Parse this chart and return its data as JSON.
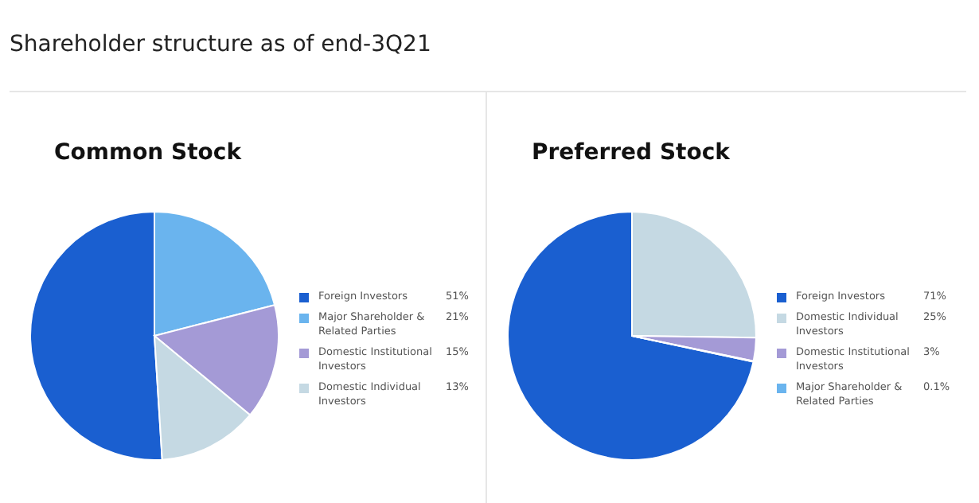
{
  "chart_data": [
    {
      "type": "pie",
      "title": "Common Stock",
      "annotations": [
        "Shareholder structure as of end-3Q21"
      ],
      "legend": "right",
      "categories": [
        "Foreign Investors",
        "Major Shareholder & Related Parties",
        "Domestic Institutional Investors",
        "Domestic Individual Investors"
      ],
      "values": [
        51,
        21,
        15,
        13
      ],
      "value_labels": [
        "51%",
        "21%",
        "15%",
        "13%"
      ],
      "colors": [
        "#1a5fd0",
        "#6ab4ee",
        "#a49ad6",
        "#c5d9e3"
      ]
    },
    {
      "type": "pie",
      "title": "Preferred Stock",
      "legend": "right",
      "categories": [
        "Foreign Investors",
        "Domestic Individual Investors",
        "Domestic Institutional Investors",
        "Major Shareholder & Related Parties"
      ],
      "values": [
        71,
        25,
        3,
        0.1
      ],
      "value_labels": [
        "71%",
        "25%",
        "3%",
        "0.1%"
      ],
      "colors": [
        "#1a5fd0",
        "#c5d9e3",
        "#a49ad6",
        "#6ab4ee"
      ]
    }
  ]
}
